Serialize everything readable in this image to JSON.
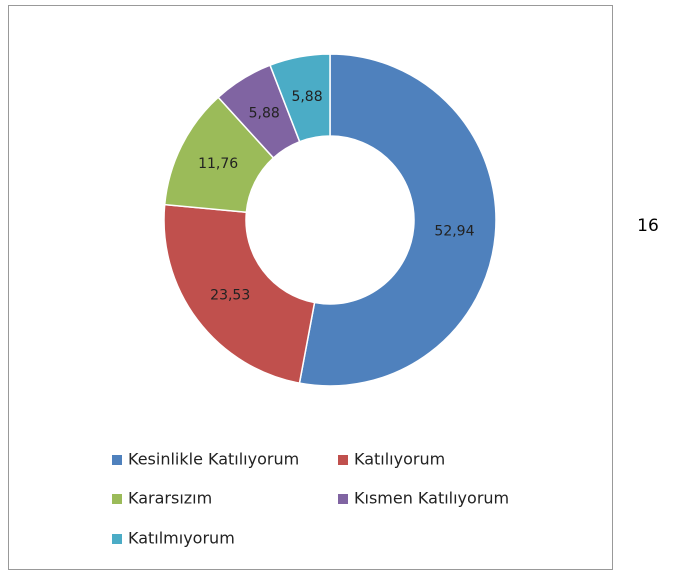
{
  "chart_data": {
    "type": "pie",
    "categories": [
      "Kesinlikle Katılıyorum",
      "Katılıyorum",
      "Kararsızım",
      "Kısmen Katılıyorum",
      "Katılmıyorum"
    ],
    "values": [
      52.94,
      23.53,
      11.76,
      5.88,
      5.88
    ],
    "value_labels": [
      "52,94",
      "23,53",
      "11,76",
      "5,88",
      "5,88"
    ],
    "colors": [
      "#4f81bd",
      "#c0504d",
      "#9bbb59",
      "#8064a2",
      "#4bacc6"
    ],
    "donut": true,
    "legend": "bottom"
  },
  "page_number": "16"
}
